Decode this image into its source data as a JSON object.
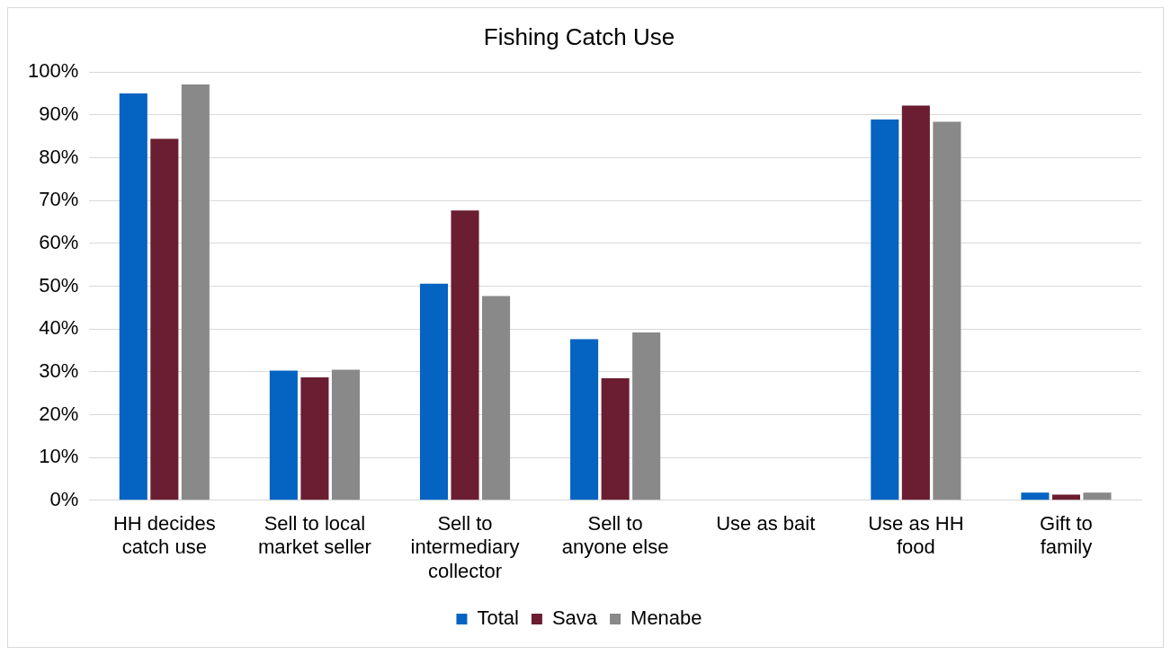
{
  "chart_data": {
    "type": "bar",
    "title": "Fishing Catch Use",
    "categories": [
      "HH decides catch use",
      "Sell to local market seller",
      "Sell to intermediary collector",
      "Sell to anyone else",
      "Use as bait",
      "Use as HH food",
      "Gift to family"
    ],
    "series": [
      {
        "name": "Total",
        "color": "#0563c1",
        "values": [
          95,
          30.3,
          50.6,
          37.6,
          0,
          88.9,
          1.8
        ]
      },
      {
        "name": "Sava",
        "color": "#6b1d31",
        "values": [
          84.4,
          28.7,
          67.7,
          28.5,
          0,
          92.2,
          1.3
        ]
      },
      {
        "name": "Menabe",
        "color": "#898989",
        "values": [
          97.1,
          30.5,
          47.7,
          39.2,
          0,
          88.4,
          1.8
        ]
      }
    ],
    "ylim": [
      0,
      100
    ],
    "yticks": [
      {
        "value": 0,
        "label": "0%"
      },
      {
        "value": 10,
        "label": "10%"
      },
      {
        "value": 20,
        "label": "20%"
      },
      {
        "value": 30,
        "label": "30%"
      },
      {
        "value": 40,
        "label": "40%"
      },
      {
        "value": 50,
        "label": "50%"
      },
      {
        "value": 60,
        "label": "60%"
      },
      {
        "value": 70,
        "label": "70%"
      },
      {
        "value": 80,
        "label": "80%"
      },
      {
        "value": 90,
        "label": "90%"
      },
      {
        "value": 100,
        "label": "100%"
      }
    ],
    "grid": "y",
    "legend": "bottom"
  }
}
